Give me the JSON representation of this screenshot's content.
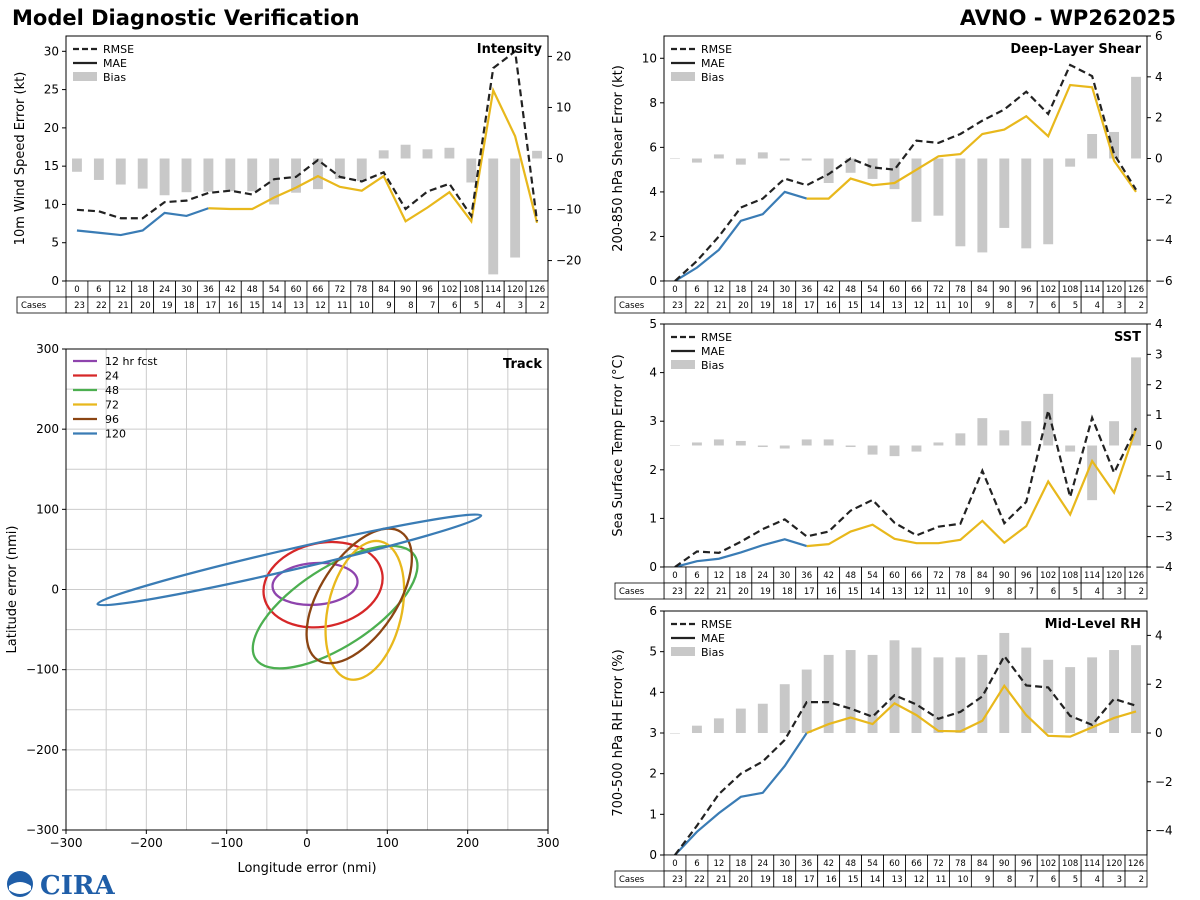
{
  "header": {
    "title": "Model Diagnostic Verification",
    "model_storm": "AVNO - WP262025"
  },
  "forecast_hours": [
    "0",
    "6",
    "12",
    "18",
    "24",
    "30",
    "36",
    "42",
    "48",
    "54",
    "60",
    "66",
    "72",
    "78",
    "84",
    "90",
    "96",
    "102",
    "108",
    "114",
    "120",
    "126"
  ],
  "cases": [
    "23",
    "22",
    "21",
    "20",
    "19",
    "18",
    "17",
    "16",
    "15",
    "14",
    "13",
    "12",
    "11",
    "10",
    "9",
    "8",
    "7",
    "6",
    "5",
    "4",
    "3",
    "2"
  ],
  "cases_label": "Cases",
  "legend_labels": {
    "rmse": "RMSE",
    "mae": "MAE",
    "bias": "Bias"
  },
  "colors": {
    "rmse": "#222222",
    "mae_early": "#3a7cb5",
    "mae_late": "#e8b81c",
    "bias": "#c8c8c8",
    "grid": "#cccccc"
  },
  "logo": {
    "text": "CIRA"
  },
  "chart_data": [
    {
      "id": "intensity",
      "type": "line",
      "title": "Intensity",
      "ylabel": "10m Wind Speed Error (kt)",
      "ylim": [
        0,
        32
      ],
      "yticks": [
        "0",
        "5",
        "10",
        "15",
        "20",
        "25",
        "30"
      ],
      "y2lim": [
        -24,
        24
      ],
      "y2ticks": [
        "20",
        "10",
        "0",
        "−10",
        "−20"
      ],
      "rmse": [
        9.3,
        9.1,
        8.2,
        8.2,
        10.3,
        10.5,
        11.5,
        11.8,
        11.3,
        13.3,
        13.6,
        15.8,
        13.6,
        13.0,
        14.2,
        9.4,
        11.7,
        12.7,
        8.5,
        27.8,
        30.0,
        7.8
      ],
      "mae": [
        6.6,
        6.3,
        6.0,
        6.6,
        8.9,
        8.5,
        9.5,
        9.4,
        9.4,
        10.9,
        12.2,
        13.7,
        12.3,
        11.8,
        13.7,
        7.8,
        9.6,
        11.6,
        7.8,
        24.9,
        18.9,
        7.6
      ],
      "bias": [
        -2.6,
        -4.2,
        -5.1,
        -5.9,
        -7.2,
        -6.6,
        -6.5,
        -6.4,
        -6.4,
        -9.0,
        -6.7,
        -6.0,
        -4.0,
        -4.4,
        1.6,
        2.7,
        1.8,
        2.1,
        -4.7,
        -22.7,
        -19.4,
        1.5
      ],
      "mae_color_switch": 6
    },
    {
      "id": "shear",
      "type": "line",
      "title": "Deep-Layer Shear",
      "ylabel": "200-850 hPa Shear Error (kt)",
      "ylim": [
        0,
        11
      ],
      "yticks": [
        "0",
        "2",
        "4",
        "6",
        "8",
        "10"
      ],
      "y2lim": [
        -6,
        6
      ],
      "y2ticks": [
        "6",
        "4",
        "2",
        "0",
        "−2",
        "−4",
        "−6"
      ],
      "rmse": [
        0,
        0.9,
        2.0,
        3.3,
        3.7,
        4.6,
        4.3,
        4.8,
        5.5,
        5.1,
        5.0,
        6.3,
        6.2,
        6.6,
        7.2,
        7.7,
        8.5,
        7.5,
        9.7,
        9.2,
        5.7,
        4.1
      ],
      "mae": [
        0,
        0.6,
        1.4,
        2.7,
        3.0,
        4.0,
        3.7,
        3.7,
        4.6,
        4.3,
        4.4,
        5.0,
        5.6,
        5.7,
        6.6,
        6.8,
        7.4,
        6.5,
        8.8,
        8.7,
        5.4,
        4.0
      ],
      "bias": [
        0,
        -0.2,
        0.2,
        -0.3,
        0.3,
        -0.1,
        -0.1,
        -1.2,
        -0.7,
        -1.0,
        -1.5,
        -3.1,
        -2.8,
        -4.3,
        -4.6,
        -3.4,
        -4.4,
        -4.2,
        -0.4,
        1.2,
        1.3,
        4.0
      ],
      "mae_color_switch": 6
    },
    {
      "id": "sst",
      "type": "line",
      "title": "SST",
      "ylabel": "Sea Surface Temp Error (°C)",
      "ylim": [
        0,
        5
      ],
      "yticks": [
        "0",
        "1",
        "2",
        "3",
        "4",
        "5"
      ],
      "y2lim": [
        -4,
        4
      ],
      "y2ticks": [
        "4",
        "3",
        "2",
        "1",
        "0",
        "−1",
        "−2",
        "−3",
        "−4"
      ],
      "rmse": [
        0,
        0.32,
        0.29,
        0.52,
        0.78,
        0.98,
        0.63,
        0.73,
        1.16,
        1.38,
        0.91,
        0.65,
        0.83,
        0.89,
        1.98,
        0.9,
        1.34,
        3.22,
        1.44,
        3.07,
        1.94,
        2.86
      ],
      "mae": [
        0,
        0.12,
        0.17,
        0.3,
        0.45,
        0.57,
        0.43,
        0.47,
        0.73,
        0.87,
        0.58,
        0.49,
        0.49,
        0.56,
        0.95,
        0.5,
        0.84,
        1.76,
        1.08,
        2.18,
        1.53,
        2.85
      ],
      "bias": [
        0,
        0.1,
        0.2,
        0.15,
        -0.05,
        -0.1,
        0.2,
        0.2,
        -0.05,
        -0.3,
        -0.35,
        -0.2,
        0.1,
        0.4,
        0.9,
        0.5,
        0.8,
        1.7,
        -0.2,
        -1.8,
        0.8,
        2.9
      ],
      "mae_color_switch": 6
    },
    {
      "id": "rh",
      "type": "line",
      "title": "Mid-Level RH",
      "ylabel": "700-500 hPa RH Error (%)",
      "ylim": [
        0,
        6
      ],
      "yticks": [
        "0",
        "1",
        "2",
        "3",
        "4",
        "5",
        "6"
      ],
      "y2lim": [
        -5,
        5
      ],
      "y2ticks": [
        "4",
        "2",
        "0",
        "−2",
        "−4"
      ],
      "rmse": [
        0,
        0.72,
        1.5,
        2.0,
        2.3,
        2.83,
        3.76,
        3.76,
        3.6,
        3.4,
        3.93,
        3.7,
        3.35,
        3.52,
        3.9,
        4.89,
        4.17,
        4.12,
        3.42,
        3.2,
        3.84,
        3.67
      ],
      "mae": [
        0,
        0.57,
        1.03,
        1.43,
        1.53,
        2.19,
        3.0,
        3.22,
        3.38,
        3.22,
        3.73,
        3.44,
        3.05,
        3.04,
        3.3,
        4.16,
        3.44,
        2.93,
        2.91,
        3.14,
        3.37,
        3.53
      ],
      "bias": [
        0,
        0.3,
        0.6,
        1.0,
        1.2,
        2.0,
        2.6,
        3.2,
        3.4,
        3.2,
        3.8,
        3.5,
        3.1,
        3.1,
        3.2,
        4.1,
        3.5,
        3.0,
        2.7,
        3.1,
        3.4,
        3.6
      ],
      "mae_color_switch": 6
    },
    {
      "id": "track",
      "type": "scatter",
      "title": "Track",
      "xlabel": "Longitude error (nmi)",
      "ylabel": "Latitude error (nmi)",
      "xlim": [
        -300,
        300
      ],
      "ylim": [
        -300,
        300
      ],
      "ticks": [
        "−300",
        "−200",
        "−100",
        "0",
        "100",
        "200",
        "300"
      ],
      "ellipses": [
        {
          "label": "12 hr fcst",
          "color": "#8e44ad",
          "cx": 10,
          "cy": 7,
          "rx": 53,
          "ry": 26,
          "angle": -4
        },
        {
          "label": "24",
          "color": "#d62728",
          "cx": 20,
          "cy": 6,
          "rx": 75,
          "ry": 52,
          "angle": -12
        },
        {
          "label": "48",
          "color": "#4caf50",
          "cx": 35,
          "cy": -22,
          "rx": 118,
          "ry": 49,
          "angle": -33
        },
        {
          "label": "72",
          "color": "#e8b81c",
          "cx": 72,
          "cy": -26,
          "rx": 88,
          "ry": 46,
          "angle": -77
        },
        {
          "label": "96",
          "color": "#8b4513",
          "cx": 65,
          "cy": -8,
          "rx": 95,
          "ry": 48,
          "angle": -57
        },
        {
          "label": "120",
          "color": "#3a7cb5",
          "cx": -22,
          "cy": 37,
          "rx": 245,
          "ry": 13,
          "angle": -13
        }
      ]
    }
  ]
}
